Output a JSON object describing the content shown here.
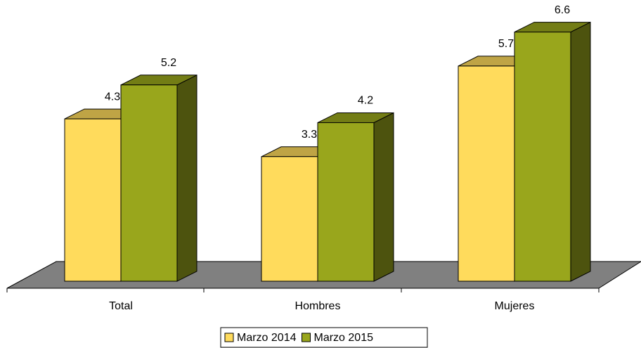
{
  "chart_data": {
    "type": "bar3d",
    "categories": [
      "Total",
      "Hombres",
      "Mujeres"
    ],
    "series": [
      {
        "name": "Marzo 2014",
        "color": "#ffdb5c",
        "values": [
          4.3,
          3.3,
          5.7
        ]
      },
      {
        "name": "Marzo 2015",
        "color": "#99a61c",
        "values": [
          5.2,
          4.2,
          6.6
        ]
      }
    ],
    "legend": "bottom"
  }
}
